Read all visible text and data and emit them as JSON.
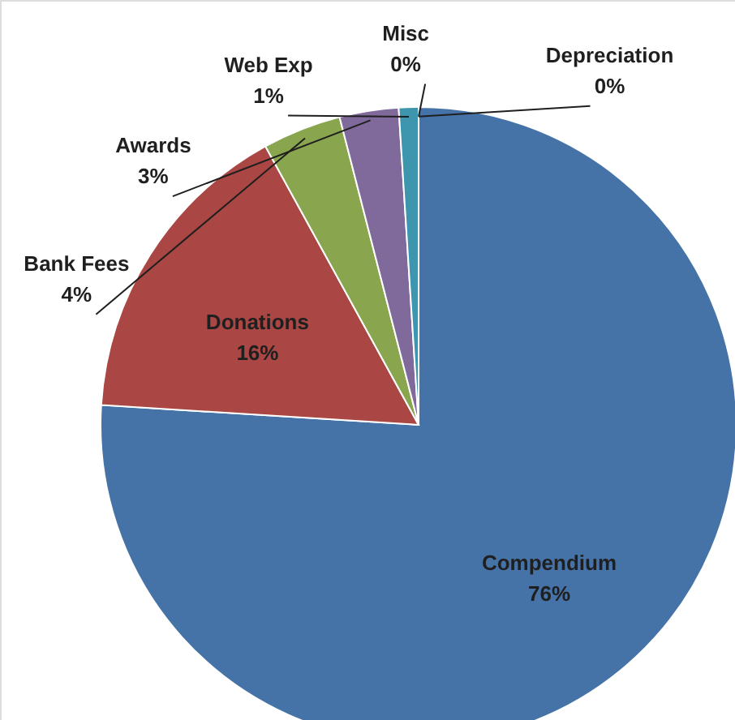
{
  "chart_data": {
    "type": "pie",
    "categories": [
      "Compendium",
      "Donations",
      "Bank Fees",
      "Awards",
      "Web Exp",
      "Misc",
      "Depreciation"
    ],
    "values": [
      76,
      16,
      4,
      3,
      1,
      0,
      0
    ],
    "value_labels": [
      "76%",
      "16%",
      "4%",
      "3%",
      "1%",
      "0%",
      "0%"
    ],
    "colors": [
      "#4572a7",
      "#aa4643",
      "#89a54e",
      "#80699b",
      "#3d96ae",
      "#db843d",
      "#92a8cd"
    ]
  }
}
